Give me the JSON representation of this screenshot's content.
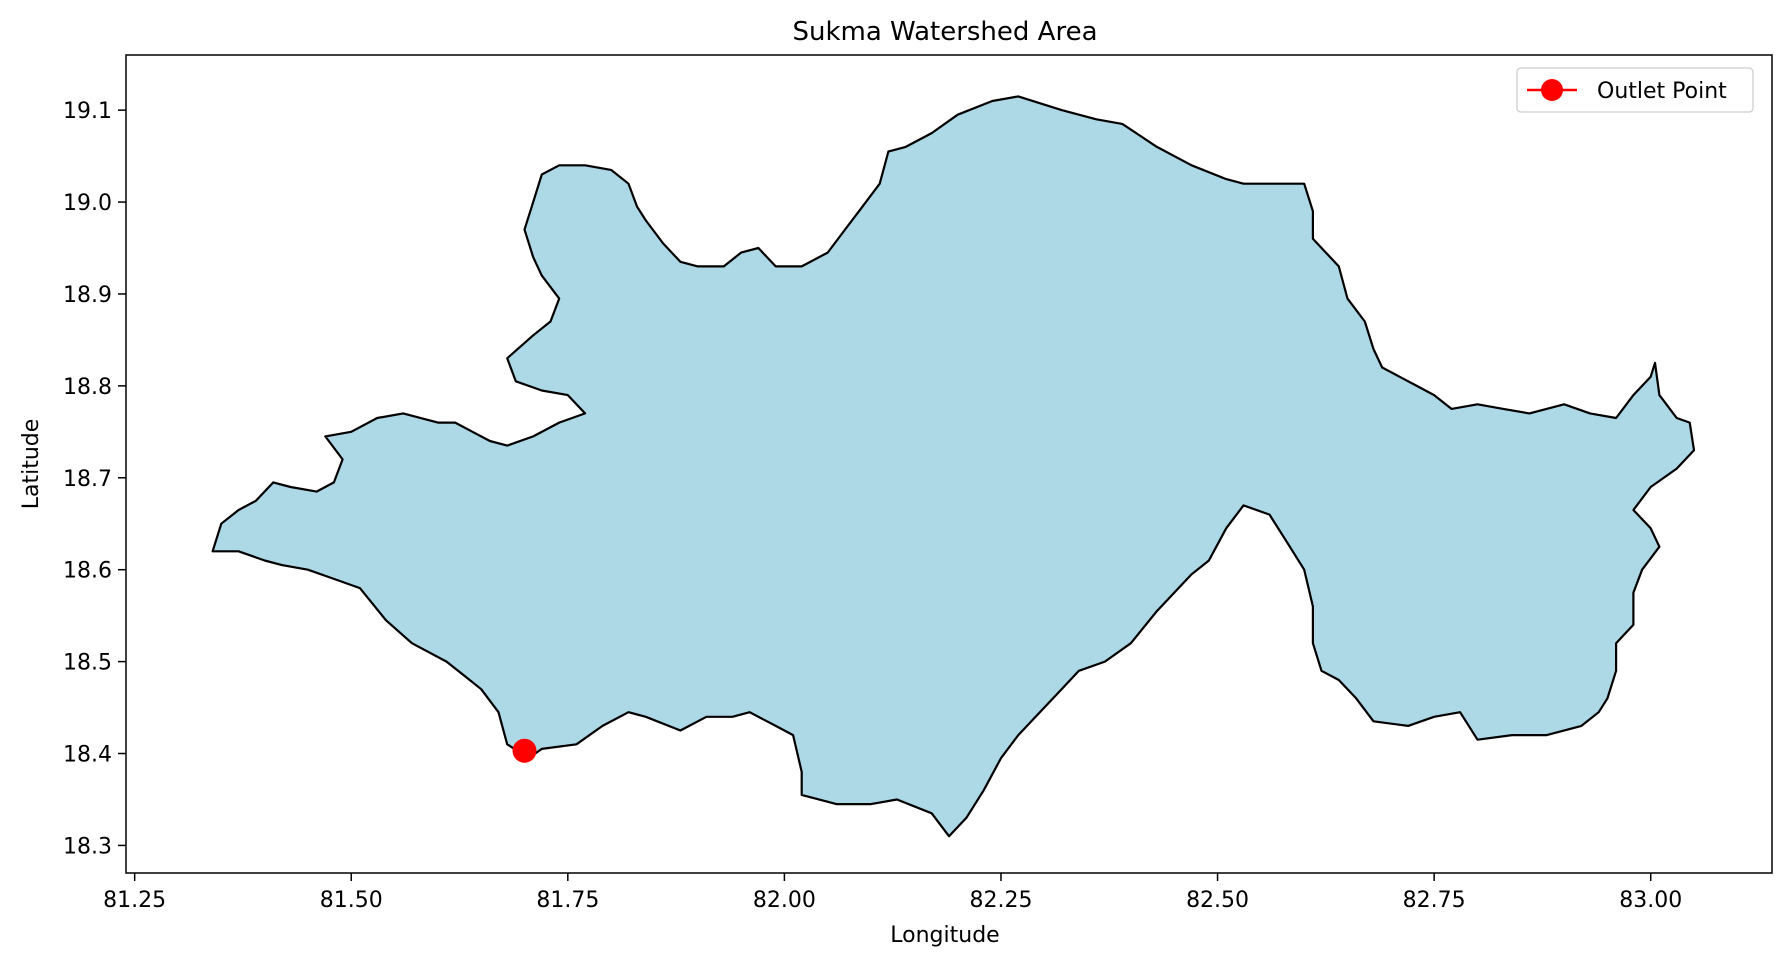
{
  "chart_data": {
    "type": "map",
    "title": "Sukma Watershed Area",
    "xlabel": "Longitude",
    "ylabel": "Latitude",
    "xlim": [
      81.24,
      83.14
    ],
    "ylim": [
      18.27,
      19.16
    ],
    "xticks": [
      81.25,
      81.5,
      81.75,
      82.0,
      82.25,
      82.5,
      82.75,
      83.0
    ],
    "xtick_labels": [
      "81.25",
      "81.50",
      "81.75",
      "82.00",
      "82.25",
      "82.50",
      "82.75",
      "83.00"
    ],
    "yticks": [
      18.3,
      18.4,
      18.5,
      18.6,
      18.7,
      18.8,
      18.9,
      19.0,
      19.1
    ],
    "ytick_labels": [
      "18.3",
      "18.4",
      "18.5",
      "18.6",
      "18.7",
      "18.8",
      "18.9",
      "19.0",
      "19.1"
    ],
    "grid": false,
    "legend": {
      "position": "top-right",
      "entries": [
        {
          "label": "Outlet Point",
          "color": "#ff0000"
        }
      ]
    },
    "colors": {
      "fill": "#add8e6",
      "edge": "#000000",
      "outlet": "#ff0000"
    },
    "outlet_point": {
      "lon": 81.7,
      "lat": 18.403
    },
    "boundary": [
      [
        81.34,
        18.62
      ],
      [
        81.35,
        18.65
      ],
      [
        81.37,
        18.665
      ],
      [
        81.39,
        18.675
      ],
      [
        81.41,
        18.695
      ],
      [
        81.43,
        18.69
      ],
      [
        81.46,
        18.685
      ],
      [
        81.48,
        18.695
      ],
      [
        81.49,
        18.72
      ],
      [
        81.47,
        18.745
      ],
      [
        81.5,
        18.75
      ],
      [
        81.53,
        18.765
      ],
      [
        81.56,
        18.77
      ],
      [
        81.6,
        18.76
      ],
      [
        81.62,
        18.76
      ],
      [
        81.64,
        18.75
      ],
      [
        81.66,
        18.74
      ],
      [
        81.68,
        18.735
      ],
      [
        81.71,
        18.745
      ],
      [
        81.74,
        18.76
      ],
      [
        81.77,
        18.77
      ],
      [
        81.75,
        18.79
      ],
      [
        81.72,
        18.795
      ],
      [
        81.69,
        18.805
      ],
      [
        81.68,
        18.83
      ],
      [
        81.71,
        18.855
      ],
      [
        81.73,
        18.87
      ],
      [
        81.74,
        18.895
      ],
      [
        81.72,
        18.92
      ],
      [
        81.71,
        18.94
      ],
      [
        81.7,
        18.97
      ],
      [
        81.71,
        19.0
      ],
      [
        81.72,
        19.03
      ],
      [
        81.74,
        19.04
      ],
      [
        81.77,
        19.04
      ],
      [
        81.8,
        19.035
      ],
      [
        81.82,
        19.02
      ],
      [
        81.83,
        18.995
      ],
      [
        81.84,
        18.98
      ],
      [
        81.86,
        18.955
      ],
      [
        81.88,
        18.935
      ],
      [
        81.9,
        18.93
      ],
      [
        81.93,
        18.93
      ],
      [
        81.95,
        18.945
      ],
      [
        81.97,
        18.95
      ],
      [
        81.99,
        18.93
      ],
      [
        82.02,
        18.93
      ],
      [
        82.05,
        18.945
      ],
      [
        82.07,
        18.97
      ],
      [
        82.09,
        18.995
      ],
      [
        82.11,
        19.02
      ],
      [
        82.12,
        19.055
      ],
      [
        82.14,
        19.06
      ],
      [
        82.17,
        19.075
      ],
      [
        82.2,
        19.095
      ],
      [
        82.24,
        19.11
      ],
      [
        82.27,
        19.115
      ],
      [
        82.32,
        19.1
      ],
      [
        82.36,
        19.09
      ],
      [
        82.39,
        19.085
      ],
      [
        82.43,
        19.06
      ],
      [
        82.47,
        19.04
      ],
      [
        82.51,
        19.025
      ],
      [
        82.53,
        19.02
      ],
      [
        82.6,
        19.02
      ],
      [
        82.61,
        18.99
      ],
      [
        82.61,
        18.96
      ],
      [
        82.64,
        18.93
      ],
      [
        82.65,
        18.895
      ],
      [
        82.67,
        18.87
      ],
      [
        82.68,
        18.84
      ],
      [
        82.69,
        18.82
      ],
      [
        82.71,
        18.81
      ],
      [
        82.73,
        18.8
      ],
      [
        82.75,
        18.79
      ],
      [
        82.77,
        18.775
      ],
      [
        82.8,
        18.78
      ],
      [
        82.83,
        18.775
      ],
      [
        82.86,
        18.77
      ],
      [
        82.9,
        18.78
      ],
      [
        82.93,
        18.77
      ],
      [
        82.96,
        18.765
      ],
      [
        82.98,
        18.79
      ],
      [
        83.0,
        18.81
      ],
      [
        83.005,
        18.825
      ],
      [
        83.01,
        18.79
      ],
      [
        83.03,
        18.765
      ],
      [
        83.045,
        18.76
      ],
      [
        83.05,
        18.73
      ],
      [
        83.03,
        18.71
      ],
      [
        83.0,
        18.69
      ],
      [
        82.98,
        18.665
      ],
      [
        83.0,
        18.645
      ],
      [
        83.01,
        18.625
      ],
      [
        82.99,
        18.6
      ],
      [
        82.98,
        18.575
      ],
      [
        82.98,
        18.54
      ],
      [
        82.96,
        18.52
      ],
      [
        82.96,
        18.49
      ],
      [
        82.95,
        18.46
      ],
      [
        82.94,
        18.445
      ],
      [
        82.92,
        18.43
      ],
      [
        82.88,
        18.42
      ],
      [
        82.84,
        18.42
      ],
      [
        82.8,
        18.415
      ],
      [
        82.78,
        18.445
      ],
      [
        82.75,
        18.44
      ],
      [
        82.72,
        18.43
      ],
      [
        82.68,
        18.435
      ],
      [
        82.66,
        18.46
      ],
      [
        82.64,
        18.48
      ],
      [
        82.62,
        18.49
      ],
      [
        82.61,
        18.52
      ],
      [
        82.61,
        18.56
      ],
      [
        82.6,
        18.6
      ],
      [
        82.58,
        18.63
      ],
      [
        82.56,
        18.66
      ],
      [
        82.53,
        18.67
      ],
      [
        82.51,
        18.645
      ],
      [
        82.49,
        18.61
      ],
      [
        82.47,
        18.595
      ],
      [
        82.43,
        18.555
      ],
      [
        82.4,
        18.52
      ],
      [
        82.37,
        18.5
      ],
      [
        82.34,
        18.49
      ],
      [
        82.32,
        18.47
      ],
      [
        82.29,
        18.44
      ],
      [
        82.27,
        18.42
      ],
      [
        82.25,
        18.395
      ],
      [
        82.23,
        18.36
      ],
      [
        82.21,
        18.33
      ],
      [
        82.19,
        18.31
      ],
      [
        82.17,
        18.335
      ],
      [
        82.13,
        18.35
      ],
      [
        82.1,
        18.345
      ],
      [
        82.06,
        18.345
      ],
      [
        82.02,
        18.355
      ],
      [
        82.02,
        18.38
      ],
      [
        82.01,
        18.42
      ],
      [
        81.99,
        18.43
      ],
      [
        81.96,
        18.445
      ],
      [
        81.94,
        18.44
      ],
      [
        81.91,
        18.44
      ],
      [
        81.88,
        18.425
      ],
      [
        81.84,
        18.44
      ],
      [
        81.82,
        18.445
      ],
      [
        81.79,
        18.43
      ],
      [
        81.76,
        18.41
      ],
      [
        81.72,
        18.405
      ],
      [
        81.705,
        18.395
      ],
      [
        81.68,
        18.41
      ],
      [
        81.67,
        18.445
      ],
      [
        81.65,
        18.47
      ],
      [
        81.63,
        18.485
      ],
      [
        81.61,
        18.5
      ],
      [
        81.57,
        18.52
      ],
      [
        81.54,
        18.545
      ],
      [
        81.51,
        18.58
      ],
      [
        81.48,
        18.59
      ],
      [
        81.45,
        18.6
      ],
      [
        81.42,
        18.605
      ],
      [
        81.4,
        18.61
      ],
      [
        81.37,
        18.62
      ],
      [
        81.34,
        18.62
      ]
    ]
  }
}
